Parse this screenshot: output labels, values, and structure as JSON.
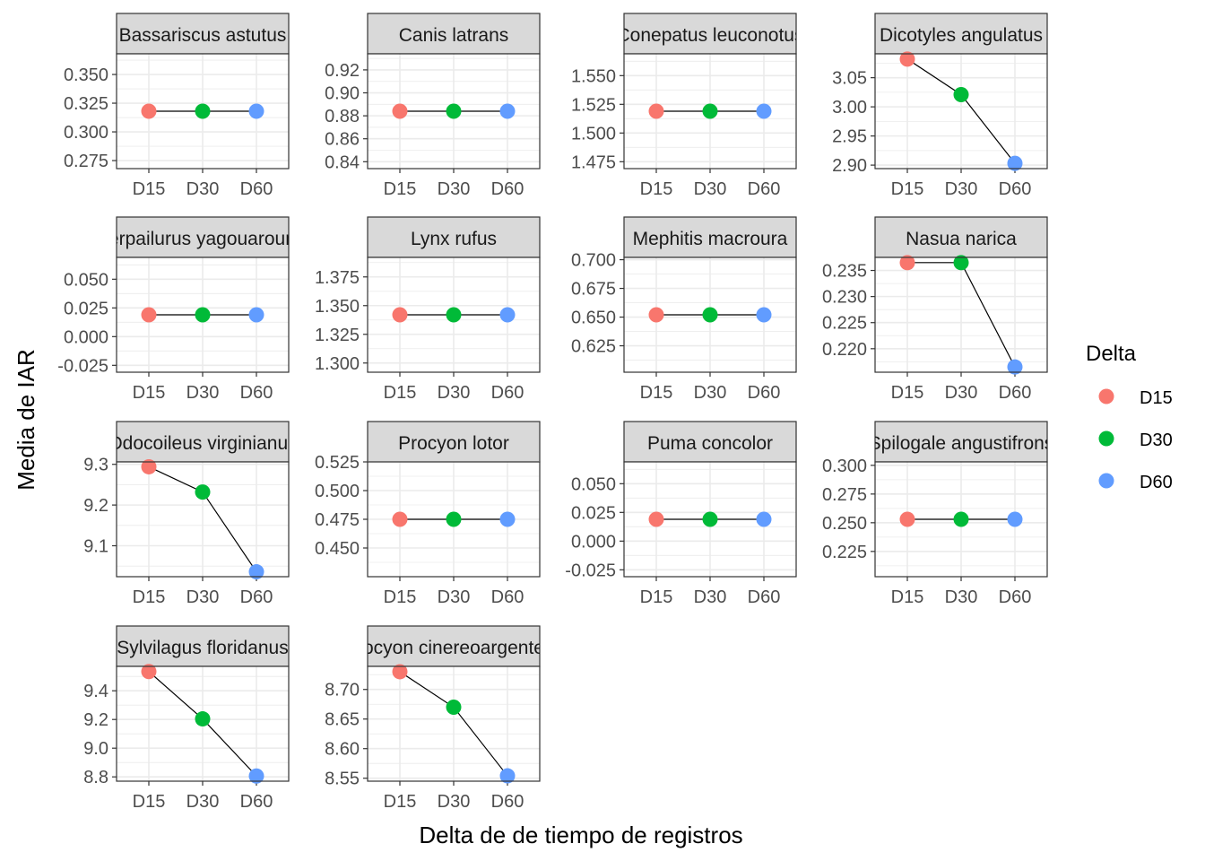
{
  "chart_data": {
    "type": "line",
    "xlabel": "Delta de de tiempo de registros",
    "ylabel": "Media de IAR",
    "categories": [
      "D15",
      "D30",
      "D60"
    ],
    "legend": {
      "title": "Delta",
      "placement": "right",
      "items": [
        {
          "label": "D15",
          "color": "#F8766D"
        },
        {
          "label": "D30",
          "color": "#00BA38"
        },
        {
          "label": "D60",
          "color": "#619CFF"
        }
      ]
    },
    "grid": true,
    "panels": [
      {
        "title": "Bassariscus astutus",
        "values": [
          0.318,
          0.318,
          0.318
        ],
        "ylim": [
          0.268,
          0.368
        ],
        "yticks": [
          "0.275",
          "0.300",
          "0.325",
          "0.350"
        ]
      },
      {
        "title": "Canis latrans",
        "values": [
          0.884,
          0.884,
          0.884
        ],
        "ylim": [
          0.834,
          0.934
        ],
        "yticks": [
          "0.84",
          "0.86",
          "0.88",
          "0.90",
          "0.92"
        ]
      },
      {
        "title": "Conepatus leuconotus",
        "values": [
          1.519,
          1.519,
          1.519
        ],
        "ylim": [
          1.469,
          1.569
        ],
        "yticks": [
          "1.475",
          "1.500",
          "1.525",
          "1.550"
        ]
      },
      {
        "title": "Dicotyles angulatus",
        "values": [
          3.082,
          3.021,
          2.903
        ],
        "ylim": [
          2.894,
          3.091
        ],
        "yticks": [
          "2.90",
          "2.95",
          "3.00",
          "3.05"
        ]
      },
      {
        "title": "Herpailurus yagouaroundi",
        "values": [
          0.019,
          0.019,
          0.019
        ],
        "ylim": [
          -0.031,
          0.069
        ],
        "yticks": [
          "-0.025",
          "0.000",
          "0.025",
          "0.050"
        ]
      },
      {
        "title": "Lynx rufus",
        "values": [
          1.342,
          1.342,
          1.342
        ],
        "ylim": [
          1.292,
          1.392
        ],
        "yticks": [
          "1.300",
          "1.325",
          "1.350",
          "1.375"
        ]
      },
      {
        "title": "Mephitis macroura",
        "values": [
          0.652,
          0.652,
          0.652
        ],
        "ylim": [
          0.602,
          0.702
        ],
        "yticks": [
          "0.625",
          "0.650",
          "0.675",
          "0.700"
        ]
      },
      {
        "title": "Nasua narica",
        "values": [
          0.2365,
          0.2365,
          0.2165
        ],
        "ylim": [
          0.2155,
          0.2375
        ],
        "yticks": [
          "0.220",
          "0.225",
          "0.230",
          "0.235"
        ]
      },
      {
        "title": "Odocoileus virginianus",
        "values": [
          9.294,
          9.232,
          9.036
        ],
        "ylim": [
          9.024,
          9.306
        ],
        "yticks": [
          "9.1",
          "9.2",
          "9.3"
        ]
      },
      {
        "title": "Procyon lotor",
        "values": [
          0.475,
          0.475,
          0.475
        ],
        "ylim": [
          0.425,
          0.525
        ],
        "yticks": [
          "0.450",
          "0.475",
          "0.500",
          "0.525"
        ]
      },
      {
        "title": "Puma concolor",
        "values": [
          0.019,
          0.019,
          0.019
        ],
        "ylim": [
          -0.031,
          0.069
        ],
        "yticks": [
          "-0.025",
          "0.000",
          "0.025",
          "0.050"
        ]
      },
      {
        "title": "Spilogale angustifrons",
        "values": [
          0.253,
          0.253,
          0.253
        ],
        "ylim": [
          0.203,
          0.303
        ],
        "yticks": [
          "0.225",
          "0.250",
          "0.275",
          "0.300"
        ]
      },
      {
        "title": "Sylvilagus floridanus",
        "values": [
          9.534,
          9.204,
          8.806
        ],
        "ylim": [
          8.77,
          9.57
        ],
        "yticks": [
          "8.8",
          "9.0",
          "9.2",
          "9.4"
        ]
      },
      {
        "title": "Urocyon cinereoargenteus",
        "values": [
          8.73,
          8.67,
          8.554
        ],
        "ylim": [
          8.545,
          8.739
        ],
        "yticks": [
          "8.55",
          "8.60",
          "8.65",
          "8.70"
        ]
      }
    ]
  }
}
